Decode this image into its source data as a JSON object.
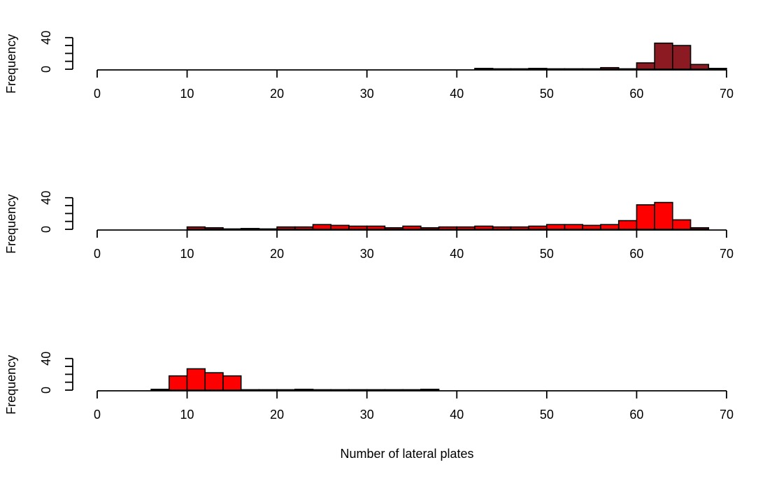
{
  "chart_data": [
    {
      "type": "bar",
      "panel": "top",
      "ylabel": "Frequency",
      "xlim": [
        0,
        70
      ],
      "ylim": [
        0,
        40
      ],
      "x_ticks": [
        0,
        10,
        20,
        30,
        40,
        50,
        60,
        70
      ],
      "y_ticks": [
        0,
        40
      ],
      "bin_width": 2,
      "bin_starts": [
        42,
        44,
        46,
        48,
        50,
        52,
        54,
        56,
        58,
        60,
        62,
        64,
        66,
        68
      ],
      "values": [
        1,
        0.5,
        0.5,
        1,
        0.5,
        0.5,
        0.5,
        2,
        0.5,
        8,
        33,
        30,
        6,
        1
      ],
      "fill_color": "#8b1a22"
    },
    {
      "type": "bar",
      "panel": "middle",
      "ylabel": "Frequency",
      "xlim": [
        0,
        70
      ],
      "ylim": [
        0,
        40
      ],
      "x_ticks": [
        0,
        10,
        20,
        30,
        40,
        50,
        60,
        70
      ],
      "y_ticks": [
        0,
        40
      ],
      "bin_width": 2,
      "bin_starts": [
        10,
        12,
        14,
        16,
        18,
        20,
        22,
        24,
        26,
        28,
        30,
        32,
        34,
        36,
        38,
        40,
        42,
        44,
        46,
        48,
        50,
        52,
        54,
        56,
        58,
        60,
        62,
        64,
        66
      ],
      "values": [
        3,
        2,
        0.5,
        1,
        0.5,
        3,
        3,
        6,
        5,
        4,
        4,
        2,
        4,
        2,
        3,
        3,
        4,
        3,
        3,
        4,
        6,
        6,
        5,
        6,
        11,
        31,
        34,
        12,
        2
      ],
      "bar_colors": [
        "#b01010",
        "#8b1a22",
        "#8b1a22",
        "#8b1a22",
        "#8b1a22",
        "#b01010",
        "#cc0d0d",
        "#ee0000",
        "#ee0000",
        "#ee0000",
        "#ee0000",
        "#cc0d0d",
        "#ee0000",
        "#cc0d0d",
        "#ee0000",
        "#ee0000",
        "#ee0000",
        "#ee0000",
        "#ee0000",
        "#ee0000",
        "#ff0000",
        "#ff0000",
        "#ff0000",
        "#ff0000",
        "#ff0000",
        "#ff0000",
        "#ff0000",
        "#ff0000",
        "#8b1a22"
      ]
    },
    {
      "type": "bar",
      "panel": "bottom",
      "ylabel": "Frequency",
      "xlabel": "Number of lateral plates",
      "xlim": [
        0,
        70
      ],
      "ylim": [
        0,
        40
      ],
      "x_ticks": [
        0,
        10,
        20,
        30,
        40,
        50,
        60,
        70
      ],
      "y_ticks": [
        0,
        40
      ],
      "bin_width": 2,
      "bin_starts": [
        6,
        8,
        10,
        12,
        14,
        16,
        18,
        20,
        22,
        24,
        26,
        28,
        30,
        32,
        34,
        36
      ],
      "values": [
        1,
        18,
        27,
        22,
        18,
        0.5,
        0.5,
        0.5,
        1,
        0.5,
        0.5,
        0.5,
        0.5,
        0.5,
        0.5,
        1
      ],
      "bar_colors": [
        "#8b1a22",
        "#ff0000",
        "#ff0000",
        "#ff0000",
        "#ff0000",
        "#8b1a22",
        "#8b1a22",
        "#8b1a22",
        "#8b1a22",
        "#8b1a22",
        "#8b1a22",
        "#8b1a22",
        "#8b1a22",
        "#8b1a22",
        "#8b1a22",
        "#8b1a22"
      ]
    }
  ]
}
